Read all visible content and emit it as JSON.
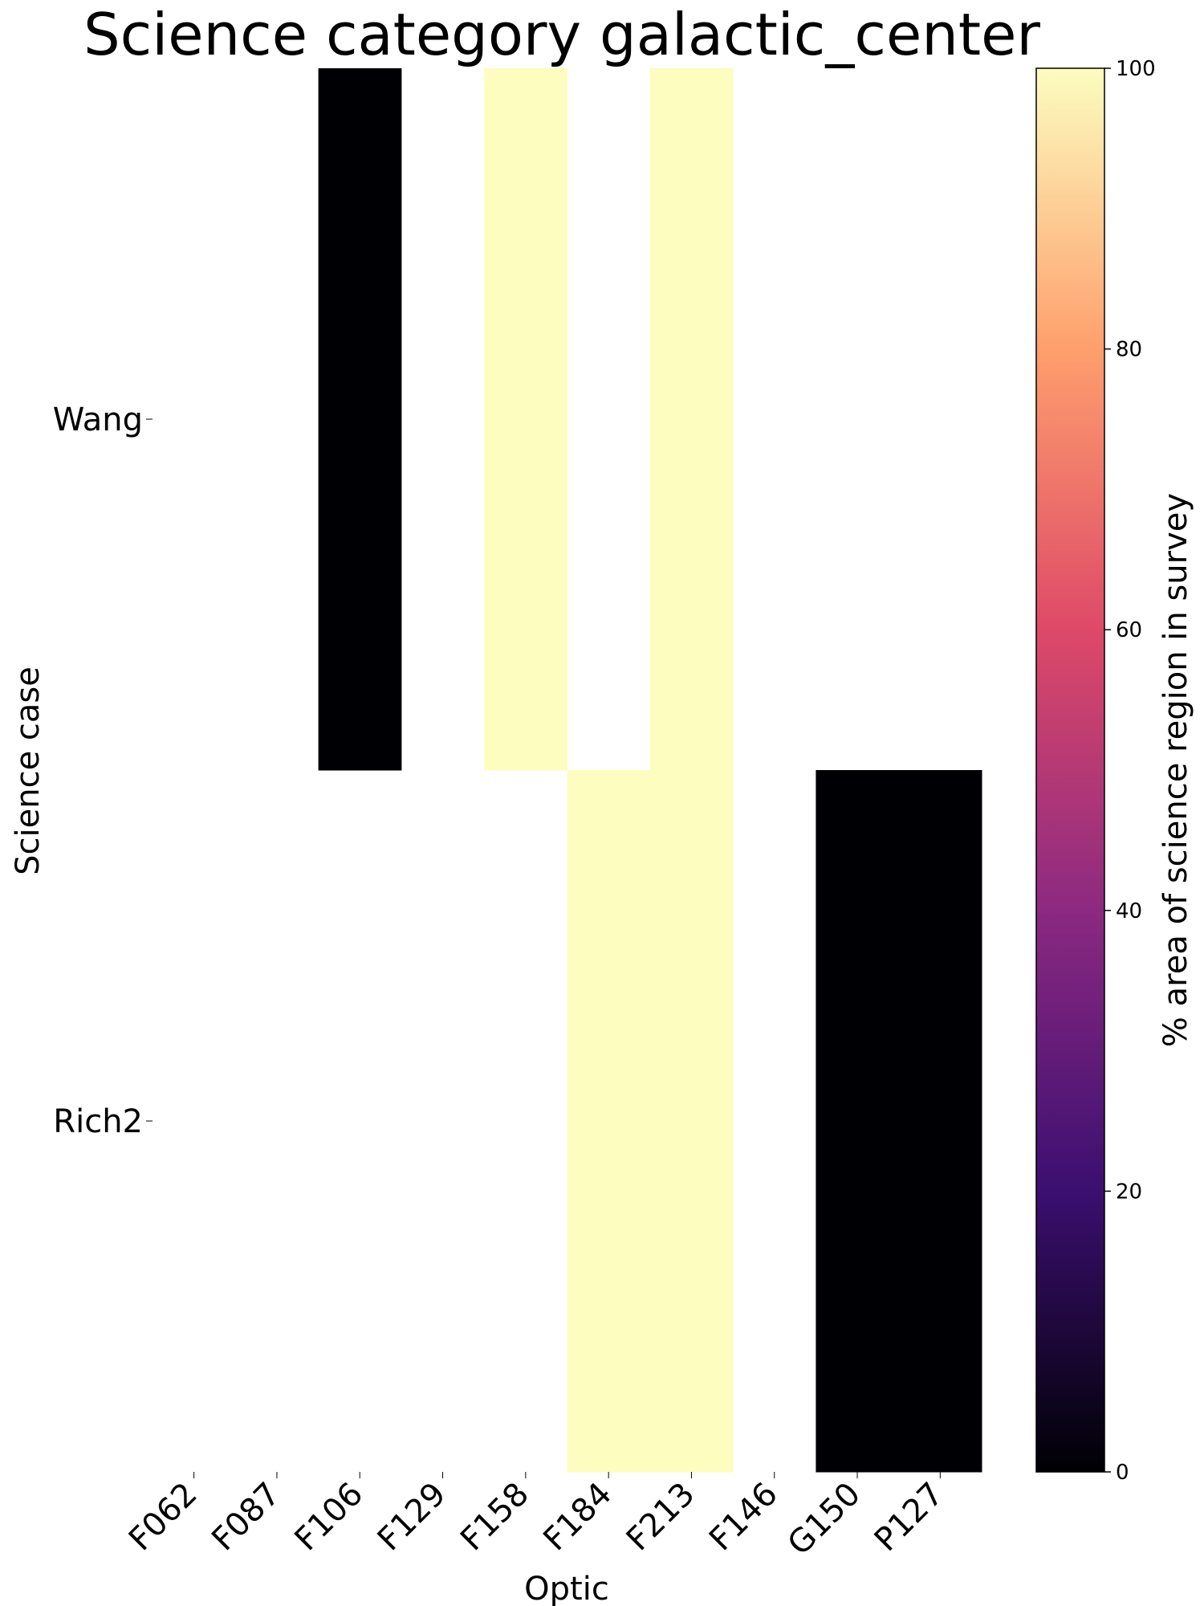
{
  "chart_data": {
    "type": "heatmap",
    "title": "Science category galactic_center",
    "xlabel": "Optic",
    "ylabel": "Science case",
    "x_categories": [
      "F062",
      "F087",
      "F106",
      "F129",
      "F158",
      "F184",
      "F213",
      "F146",
      "G150",
      "P127"
    ],
    "y_categories": [
      "Wang",
      "Rich2"
    ],
    "values": [
      [
        null,
        null,
        0,
        null,
        100,
        null,
        100,
        null,
        null,
        null
      ],
      [
        null,
        null,
        null,
        null,
        null,
        100,
        100,
        null,
        0,
        0
      ]
    ],
    "colorbar": {
      "label": "% area of science region in survey",
      "range": [
        0,
        100
      ],
      "ticks": [
        0,
        20,
        40,
        60,
        80,
        100
      ],
      "colormap": "magma",
      "colors": [
        "#000004",
        "#3b0f70",
        "#8c2981",
        "#de4968",
        "#fe9f6d",
        "#fcfdbf"
      ]
    },
    "grid": false,
    "legend": "colorbar-right"
  }
}
